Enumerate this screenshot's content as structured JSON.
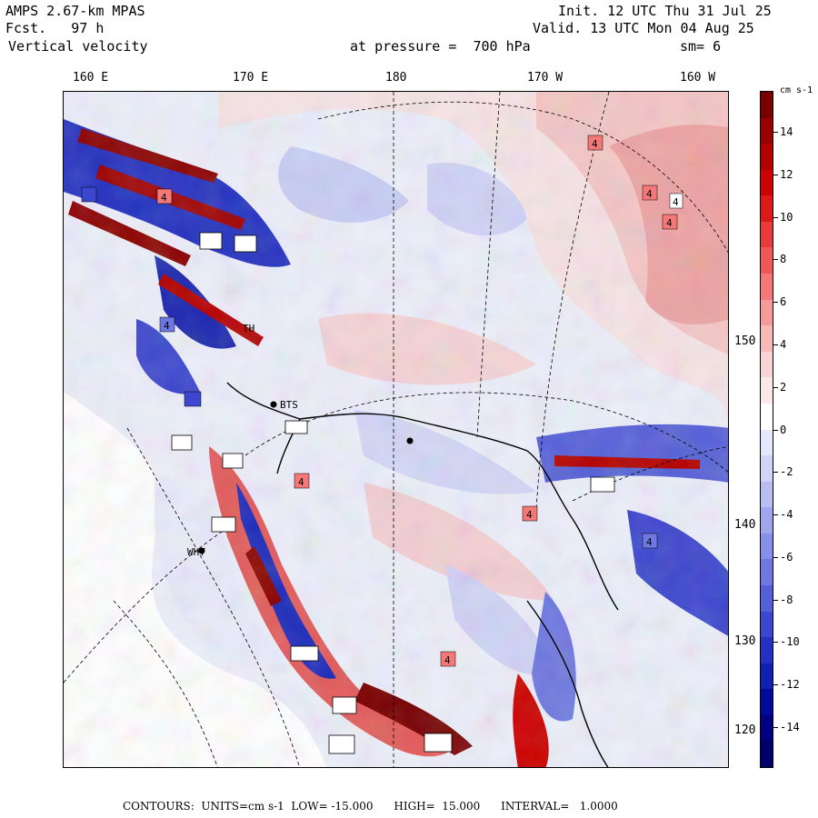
{
  "header": {
    "model": "AMPS 2.67-km MPAS",
    "forecast": "Fcst.   97 h",
    "field": "Vertical velocity",
    "init": "Init. 12 UTC Thu 31 Jul 25",
    "valid": "Valid. 13 UTC Mon 04 Aug 25",
    "pressure": "at pressure =  700 hPa",
    "smoothing": "sm= 6"
  },
  "map": {
    "lon_labels": [
      "160 E",
      "170 E",
      "180",
      "170 W",
      "160 W"
    ],
    "lat_labels": [
      "150 W",
      "140 W",
      "130 W",
      "120 W"
    ],
    "station_labels": [
      "BTS",
      "WHT",
      "TH"
    ],
    "highs_lows_value": "4",
    "colors": {
      "ocean_white": "#ffffff",
      "neutral_pink": "#fbe4e4",
      "neutral_blue": "#e6e8fb",
      "light_red": "#f4b4b4",
      "light_blue": "#b8bdf2",
      "medium_red": "#e86060",
      "medium_blue": "#6e78e0",
      "dark_red": "#8b0000",
      "dark_blue": "#00008b"
    }
  },
  "colorbar": {
    "units": "cm s-1",
    "labels": [
      "14",
      "12",
      "10",
      "8",
      "6",
      "4",
      "2",
      "0",
      "-2",
      "-4",
      "-6",
      "-8",
      "-10",
      "-12",
      "-14"
    ],
    "colors": [
      "#7a0000",
      "#990000",
      "#b50000",
      "#cc0000",
      "#dd1a1a",
      "#e83a3a",
      "#f05858",
      "#f47878",
      "#f69a9a",
      "#f8b8b8",
      "#fad4d4",
      "#fbe8e8",
      "#ffffff",
      "#e6e8fb",
      "#d0d4f8",
      "#b8bdf2",
      "#a0a6ee",
      "#888fe8",
      "#6e78e0",
      "#5560d8",
      "#3c46ce",
      "#2430c4",
      "#1020b0",
      "#000a98",
      "#000080",
      "#00006a"
    ]
  },
  "footer": {
    "text": "CONTOURS:  UNITS=cm s-1  LOW= -15.000      HIGH=  15.000      INTERVAL=   1.0000"
  }
}
